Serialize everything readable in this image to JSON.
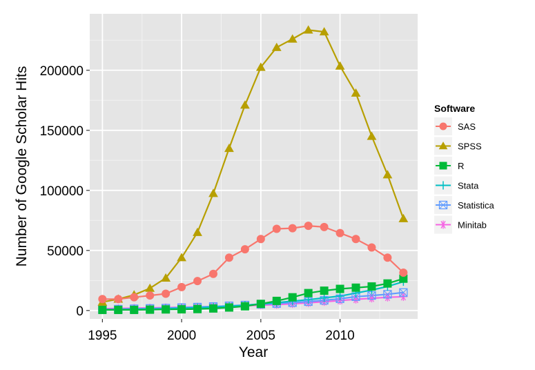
{
  "chart_data": {
    "type": "line",
    "xlabel": "Year",
    "ylabel": "Number of Google Scholar Hits",
    "xlim": [
      1994.2,
      2014.9
    ],
    "ylim": [
      -7000,
      247000
    ],
    "xticks": [
      1995,
      2000,
      2005,
      2010
    ],
    "yticks": [
      0,
      50000,
      100000,
      150000,
      200000
    ],
    "ytick_labels": [
      "0",
      "50000",
      "100000",
      "150000",
      "200000"
    ],
    "xtick_labels": [
      "1995",
      "2000",
      "2005",
      "2010"
    ],
    "x": [
      1995,
      1996,
      1997,
      1998,
      1999,
      2000,
      2001,
      2002,
      2003,
      2004,
      2005,
      2006,
      2007,
      2008,
      2009,
      2010,
      2011,
      2012,
      2013,
      2014
    ],
    "grid": true,
    "legend": {
      "title": "Software",
      "position": "right"
    },
    "series": [
      {
        "name": "SAS",
        "color": "#F8766D",
        "marker": "circle",
        "values": [
          9500,
          9500,
          11000,
          12500,
          14000,
          19500,
          24500,
          30500,
          44000,
          51000,
          59500,
          68000,
          68500,
          70500,
          69500,
          64500,
          59500,
          52500,
          44000,
          31500
        ]
      },
      {
        "name": "SPSS",
        "color": "#B79F00",
        "marker": "triangle",
        "values": [
          7000,
          9500,
          13000,
          18500,
          27000,
          44000,
          65000,
          97500,
          135000,
          171000,
          202500,
          219000,
          226000,
          233500,
          232000,
          203500,
          181000,
          145000,
          113000,
          76500
        ]
      },
      {
        "name": "R",
        "color": "#00BA38",
        "marker": "square",
        "values": [
          500,
          500,
          500,
          700,
          900,
          1000,
          1200,
          1700,
          2500,
          3500,
          5500,
          8000,
          11000,
          14500,
          16500,
          18000,
          19000,
          20000,
          22500,
          26500
        ]
      },
      {
        "name": "Stata",
        "color": "#00BFC4",
        "marker": "plus",
        "values": [
          600,
          800,
          1000,
          1200,
          1500,
          1900,
          2300,
          2900,
          3600,
          4400,
          5500,
          6500,
          7800,
          9000,
          10500,
          12000,
          14500,
          17000,
          20000,
          24000
        ]
      },
      {
        "name": "Statistica",
        "color": "#619CFF",
        "marker": "square-x",
        "values": [
          900,
          1100,
          1400,
          1700,
          2000,
          2400,
          2800,
          3300,
          3900,
          4500,
          5200,
          5800,
          6600,
          7400,
          8500,
          9800,
          11500,
          12500,
          13500,
          15000
        ]
      },
      {
        "name": "Minitab",
        "color": "#F564E3",
        "marker": "asterisk",
        "values": [
          1500,
          1700,
          2000,
          2200,
          2400,
          2700,
          3000,
          3300,
          3600,
          4000,
          4400,
          4900,
          5600,
          6400,
          7300,
          8300,
          9300,
          10200,
          11000,
          11500
        ]
      }
    ]
  }
}
